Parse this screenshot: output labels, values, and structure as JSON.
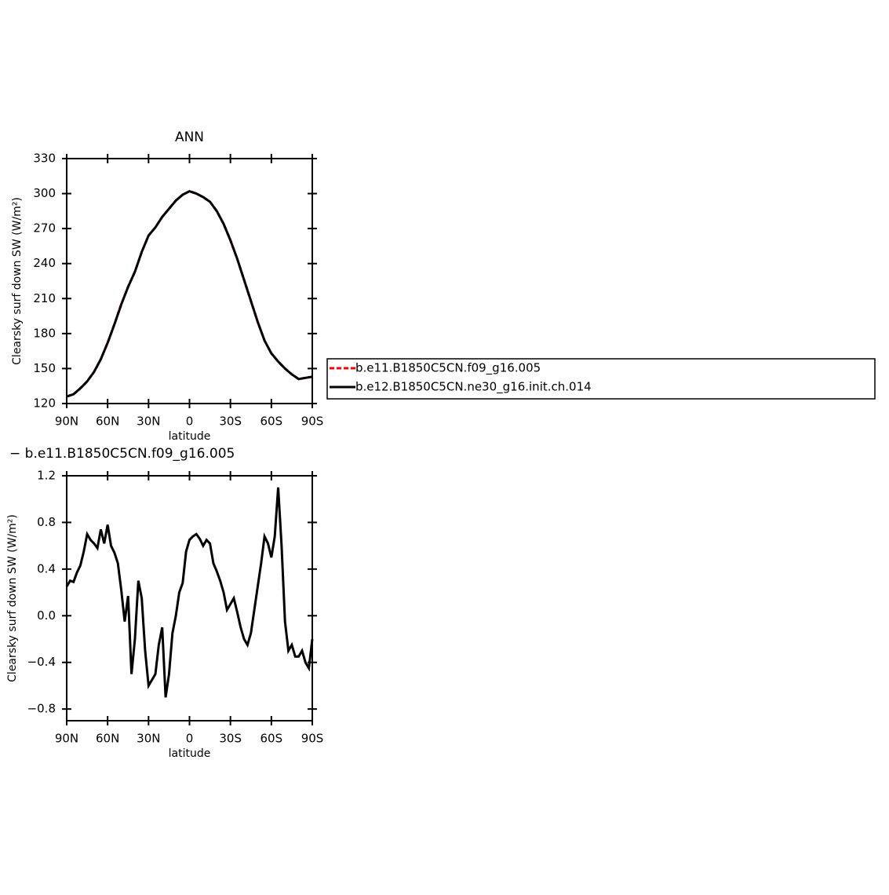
{
  "chart_data": [
    {
      "type": "line",
      "title": "ANN",
      "xlabel": "latitude",
      "ylabel": "Clearsky surf down SW (W/m²)",
      "xlim": [
        90,
        -90
      ],
      "ylim": [
        120,
        330
      ],
      "xticks": [
        {
          "value": 90,
          "label": "90N"
        },
        {
          "value": 60,
          "label": "60N"
        },
        {
          "value": 30,
          "label": "30N"
        },
        0,
        {
          "value": -30,
          "label": "30S"
        },
        {
          "value": -60,
          "label": "60S"
        },
        {
          "value": -90,
          "label": "90S"
        }
      ],
      "yticks": [
        120,
        150,
        180,
        210,
        240,
        270,
        300,
        330
      ],
      "legend": "right",
      "x": [
        90,
        85,
        80,
        75,
        70,
        65,
        60,
        55,
        50,
        45,
        40,
        35,
        30,
        25,
        20,
        15,
        10,
        5,
        0,
        -5,
        -10,
        -15,
        -20,
        -25,
        -30,
        -35,
        -40,
        -45,
        -50,
        -55,
        -60,
        -65,
        -70,
        -75,
        -80,
        -85,
        -90
      ],
      "series": [
        {
          "name": "b.e11.B1850C5CN.f09_g16.005",
          "color": "#ff0000",
          "dash": "dashed",
          "values": [
            126,
            128,
            133,
            139,
            147,
            158,
            172,
            188,
            205,
            220,
            233,
            250,
            264,
            271,
            280,
            287,
            294,
            299,
            302,
            300,
            297,
            293,
            285,
            274,
            260,
            244,
            226,
            208,
            190,
            174,
            163,
            156,
            150,
            145,
            141,
            142,
            143
          ]
        },
        {
          "name": "b.e12.B1850C5CN.ne30_g16.init.ch.014",
          "color": "#000000",
          "dash": "solid",
          "values": [
            126,
            128,
            133,
            139,
            147,
            158,
            172,
            188,
            205,
            220,
            233,
            250,
            264,
            271,
            280,
            287,
            294,
            299,
            302,
            300,
            297,
            293,
            285,
            274,
            260,
            244,
            226,
            208,
            190,
            174,
            163,
            156,
            150,
            145,
            141,
            142,
            143
          ]
        }
      ]
    },
    {
      "type": "line",
      "title": "− b.e11.B1850C5CN.f09_g16.005",
      "xlabel": "latitude",
      "ylabel": "Clearsky surf down SW (W/m²)",
      "xlim": [
        90,
        -90
      ],
      "ylim": [
        -0.9,
        1.2
      ],
      "xticks": [
        {
          "value": 90,
          "label": "90N"
        },
        {
          "value": 60,
          "label": "60N"
        },
        {
          "value": 30,
          "label": "30N"
        },
        0,
        {
          "value": -30,
          "label": "30S"
        },
        {
          "value": -60,
          "label": "60S"
        },
        {
          "value": -90,
          "label": "90S"
        }
      ],
      "yticks": [
        {
          "value": -0.8,
          "label": "−0.8"
        },
        {
          "value": -0.4,
          "label": "−0.4"
        },
        {
          "value": 0,
          "label": "0.0"
        },
        0.4,
        0.8,
        1.2
      ],
      "x": [
        90,
        87.5,
        85,
        82.5,
        80,
        77.5,
        75,
        72.5,
        70,
        67.5,
        65,
        62.5,
        60,
        57.5,
        55,
        52.5,
        50,
        47.5,
        45,
        42.5,
        40,
        37.5,
        35,
        32.5,
        30,
        27.5,
        25,
        22.5,
        20,
        17.5,
        15,
        12.5,
        10,
        7.5,
        5,
        2.5,
        0,
        -2.5,
        -5,
        -7.5,
        -10,
        -12.5,
        -15,
        -17.5,
        -20,
        -22.5,
        -25,
        -27.5,
        -30,
        -32.5,
        -35,
        -37.5,
        -40,
        -42.5,
        -45,
        -47.5,
        -50,
        -52.5,
        -55,
        -57.5,
        -60,
        -62.5,
        -65,
        -67.5,
        -70,
        -72.5,
        -75,
        -77.5,
        -80,
        -82.5,
        -85,
        -87.5,
        -90
      ],
      "series": [
        {
          "color": "#000000",
          "dash": "solid",
          "values": [
            0.25,
            0.3,
            0.29,
            0.37,
            0.43,
            0.55,
            0.7,
            0.65,
            0.62,
            0.58,
            0.74,
            0.62,
            0.78,
            0.6,
            0.54,
            0.45,
            0.22,
            -0.05,
            0.17,
            -0.5,
            -0.2,
            0.3,
            0.15,
            -0.3,
            -0.6,
            -0.55,
            -0.5,
            -0.25,
            -0.1,
            -0.7,
            -0.5,
            -0.15,
            0,
            0.2,
            0.28,
            0.55,
            0.65,
            0.68,
            0.7,
            0.66,
            0.6,
            0.65,
            0.62,
            0.45,
            0.38,
            0.3,
            0.2,
            0.05,
            0.1,
            0.15,
            0.03,
            -0.1,
            -0.2,
            -0.25,
            -0.15,
            0.05,
            0.25,
            0.45,
            0.68,
            0.62,
            0.5,
            0.68,
            1.1,
            0.6,
            -0.05,
            -0.3,
            -0.25,
            -0.35,
            -0.35,
            -0.3,
            -0.4,
            -0.45,
            -0.2
          ]
        }
      ]
    }
  ]
}
